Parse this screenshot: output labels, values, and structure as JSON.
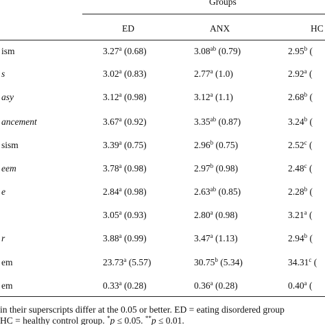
{
  "header": {
    "title": "Groups",
    "columns": [
      "ED",
      "ANX",
      "HC"
    ]
  },
  "table": {
    "rows": [
      {
        "label": "ism",
        "italic": false,
        "cells": [
          {
            "mean": "3.27",
            "sup": "a",
            "sd": "(0.68)"
          },
          {
            "mean": "3.08",
            "sup": "ab",
            "sd": "(0.79)"
          },
          {
            "mean": "2.95",
            "sup": "b",
            "sd": "("
          }
        ]
      },
      {
        "label": "s",
        "italic": true,
        "cells": [
          {
            "mean": "3.02",
            "sup": "a",
            "sd": "(0.83)"
          },
          {
            "mean": "2.77",
            "sup": "a",
            "sd": "(1.0)"
          },
          {
            "mean": "2.92",
            "sup": "a",
            "sd": "("
          }
        ]
      },
      {
        "label": "asy",
        "italic": true,
        "cells": [
          {
            "mean": "3.12",
            "sup": "a",
            "sd": "(0.98)"
          },
          {
            "mean": "3.12",
            "sup": "a",
            "sd": "(1.1)"
          },
          {
            "mean": "2.68",
            "sup": "b",
            "sd": "("
          }
        ]
      },
      {
        "label": "ancement",
        "italic": true,
        "cells": [
          {
            "mean": "3.67",
            "sup": "a",
            "sd": "(0.92)"
          },
          {
            "mean": "3.35",
            "sup": "ab",
            "sd": "(0.87)"
          },
          {
            "mean": "3.24",
            "sup": "b",
            "sd": "("
          }
        ]
      },
      {
        "label": "sism",
        "italic": false,
        "cells": [
          {
            "mean": "3.39",
            "sup": "a",
            "sd": "(0.75)"
          },
          {
            "mean": "2.96",
            "sup": "b",
            "sd": "(0.75)"
          },
          {
            "mean": "2.52",
            "sup": "c",
            "sd": "("
          }
        ]
      },
      {
        "label": "eem",
        "italic": true,
        "cells": [
          {
            "mean": "3.78",
            "sup": "a",
            "sd": "(0.98)"
          },
          {
            "mean": "2.97",
            "sup": "b",
            "sd": "(0.98)"
          },
          {
            "mean": "2.48",
            "sup": "c",
            "sd": "("
          }
        ]
      },
      {
        "label": "e",
        "italic": true,
        "cells": [
          {
            "mean": "2.84",
            "sup": "a",
            "sd": "(0.98)"
          },
          {
            "mean": "2.63",
            "sup": "ab",
            "sd": "(0.85)"
          },
          {
            "mean": "2.28",
            "sup": "b",
            "sd": "("
          }
        ]
      },
      {
        "italic": false,
        "cells": [
          {
            "mean": "3.05",
            "sup": "a",
            "sd": "(0.93)"
          },
          {
            "mean": "2.80",
            "sup": "a",
            "sd": "(0.98)"
          },
          {
            "mean": "3.21",
            "sup": "a",
            "sd": "("
          }
        ]
      },
      {
        "label": "r",
        "italic": true,
        "cells": [
          {
            "mean": "3.88",
            "sup": "a",
            "sd": "(0.99)"
          },
          {
            "mean": "3.47",
            "sup": "a",
            "sd": "(1.13)"
          },
          {
            "mean": "2.94",
            "sup": "b",
            "sd": "("
          }
        ]
      },
      {
        "label": "em",
        "italic": false,
        "cells": [
          {
            "mean": "23.73",
            "sup": "a",
            "sd": "(5.57)"
          },
          {
            "mean": "30.75",
            "sup": "b",
            "sd": "(5.34)"
          },
          {
            "mean": "34.31",
            "sup": "c",
            "sd": "("
          }
        ]
      },
      {
        "label": "em",
        "italic": false,
        "cells": [
          {
            "mean": "0.33",
            "sup": "a",
            "sd": "(0.28)"
          },
          {
            "mean": "0.36",
            "sup": "a",
            "sd": "(0.28)"
          },
          {
            "mean": "0.40",
            "sup": "a",
            "sd": "("
          }
        ]
      }
    ]
  },
  "footer": {
    "line1": "in their superscripts differ at the 0.05 or better. ED = eating disordered group",
    "line2": [
      {
        "text": "HC = healthy control group. "
      },
      {
        "sup": "*"
      },
      {
        "italic": "p"
      },
      {
        "text": " ≤ 0.05. "
      },
      {
        "sup": "**"
      },
      {
        "italic": "p"
      },
      {
        "text": " ≤ 0.01."
      }
    ]
  }
}
